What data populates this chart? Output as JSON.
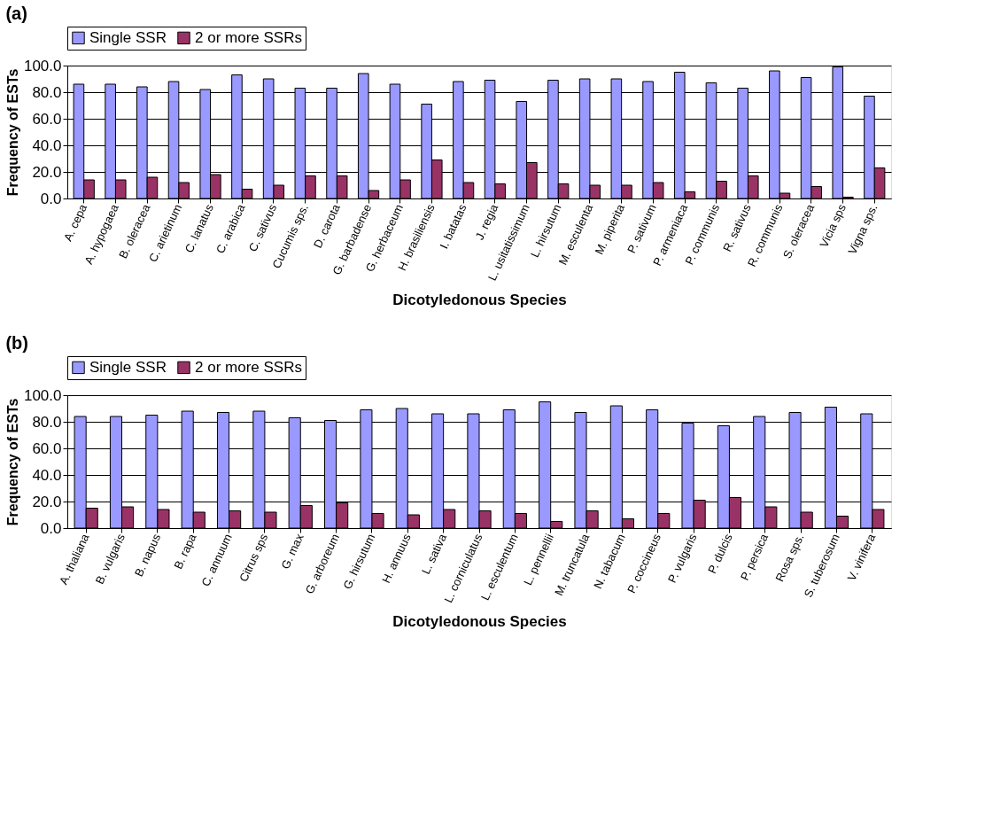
{
  "chart_data": [
    {
      "type": "bar",
      "title": "(a)",
      "xlabel": "Dicotyledonous Species",
      "ylabel": "Frequency of ESTs",
      "categories": [
        "A. cepa",
        "A. hypogaea",
        "B. oleracea",
        "C. arietinum",
        "C. lanatus",
        "C. arabica",
        "C. sativus",
        "Cucumis sps.",
        "D. carota",
        "G. barbadense",
        "G. herbaceum",
        "H. brasiliensis",
        "I. batatas",
        "J. regia",
        "L. usitatissimum",
        "L. hirsutum",
        "M. esculenta",
        "M. piperita",
        "P. sativum",
        "P. armeniaca",
        "P. communis",
        "R. sativus",
        "R. communis",
        "S. oleracea",
        "Vicia sps",
        "Vigna sps."
      ],
      "series": [
        {
          "name": "Single SSR",
          "color": "#9999ff",
          "values": [
            86,
            86,
            84,
            88,
            82,
            93,
            90,
            83,
            83,
            94,
            86,
            71,
            88,
            89,
            73,
            89,
            90,
            90,
            88,
            95,
            87,
            83,
            96,
            91,
            99,
            77
          ]
        },
        {
          "name": "2 or more SSRs",
          "color": "#993366",
          "values": [
            14,
            14,
            16,
            12,
            18,
            7,
            10,
            17,
            17,
            6,
            14,
            29,
            12,
            11,
            27,
            11,
            10,
            10,
            12,
            5,
            13,
            17,
            4,
            9,
            1,
            23
          ]
        }
      ],
      "ylim": [
        0,
        100
      ],
      "yticks": [
        {
          "value": 0,
          "label": "0.0"
        },
        {
          "value": 20,
          "label": "20.0"
        },
        {
          "value": 40,
          "label": "40.0"
        },
        {
          "value": 60,
          "label": "60.0"
        },
        {
          "value": 80,
          "label": "80.0"
        },
        {
          "value": 100,
          "label": "100.0"
        }
      ],
      "grid": "y",
      "legend": "top"
    },
    {
      "type": "bar",
      "title": "(b)",
      "xlabel": "Dicotyledonous Species",
      "ylabel": "Frequency of ESTs",
      "categories": [
        "A. thaliana",
        "B. vulgaris",
        "B. napus",
        "B. rapa",
        "C. annuum",
        "Citrus sps",
        "G. max",
        "G. arboreum",
        "G. hirsutum",
        "H. annuus",
        "L. sativa",
        "L. corniculatus",
        "L. esculentum",
        "L. pennellii",
        "M. truncatula",
        "N. tabacum",
        "P. coccineus",
        "P. vulgaris",
        "P. dulcis",
        "P. persica",
        "Rosa sps.",
        "S. tuberosum",
        "V. vinifera"
      ],
      "series": [
        {
          "name": "Single SSR",
          "color": "#9999ff",
          "values": [
            84,
            84,
            85,
            88,
            87,
            88,
            83,
            81,
            89,
            90,
            86,
            86,
            89,
            95,
            87,
            92,
            89,
            79,
            77,
            84,
            87,
            91,
            86
          ]
        },
        {
          "name": "2 or more SSRs",
          "color": "#993366",
          "values": [
            15,
            16,
            14,
            12,
            13,
            12,
            17,
            19,
            11,
            10,
            14,
            13,
            11,
            5,
            13,
            7,
            11,
            21,
            23,
            16,
            12,
            9,
            14
          ]
        }
      ],
      "ylim": [
        0,
        100
      ],
      "yticks": [
        {
          "value": 0,
          "label": "0.0"
        },
        {
          "value": 20,
          "label": "20.0"
        },
        {
          "value": 40,
          "label": "40.0"
        },
        {
          "value": 60,
          "label": "60.0"
        },
        {
          "value": 80,
          "label": "80.0"
        },
        {
          "value": 100,
          "label": "100.0"
        }
      ],
      "grid": "y",
      "legend": "top"
    }
  ]
}
